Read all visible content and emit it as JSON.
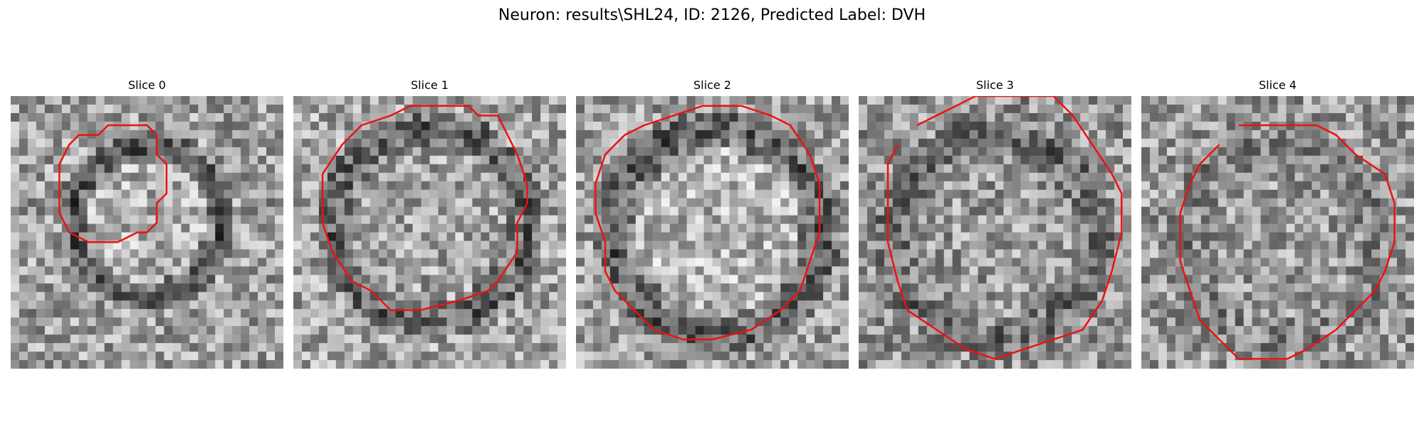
{
  "figure": {
    "title": "Neuron: results\\SHL24, ID: 2126, Predicted Label: DVH"
  },
  "contour_color": "#ee1111",
  "panels": [
    {
      "title": "Slice 0"
    },
    {
      "title": "Slice 1"
    },
    {
      "title": "Slice 2"
    },
    {
      "title": "Slice 3"
    },
    {
      "title": "Slice 4"
    }
  ]
}
